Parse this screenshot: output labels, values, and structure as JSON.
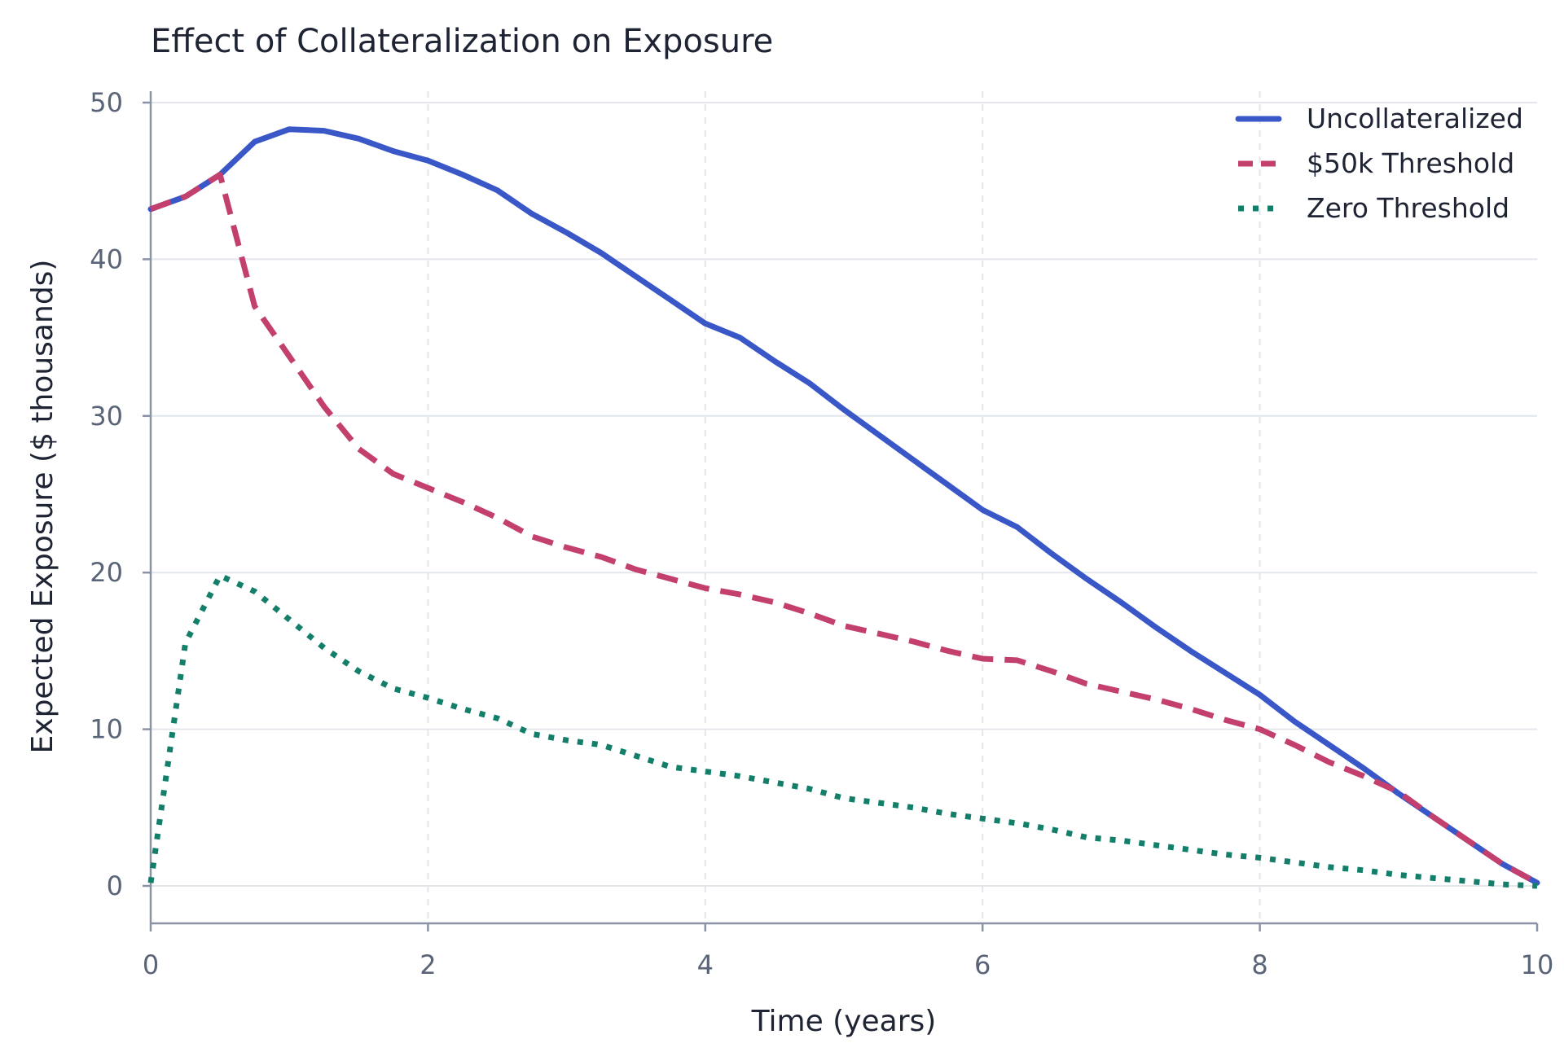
{
  "chart_data": {
    "type": "line",
    "title": "Effect of Collateralization on Exposure",
    "xlabel": "Time (years)",
    "ylabel": "Expected Exposure ($ thousands)",
    "xlim": [
      0,
      10
    ],
    "ylim": [
      0,
      50
    ],
    "xticks": [
      "0",
      "2",
      "4",
      "6",
      "8",
      "10"
    ],
    "yticks": [
      "0",
      "10",
      "20",
      "30",
      "40",
      "50"
    ],
    "grid": true,
    "legend_position": "top-right",
    "x": [
      0,
      0.25,
      0.5,
      0.75,
      1,
      1.25,
      1.5,
      1.75,
      2,
      2.25,
      2.5,
      2.75,
      3,
      3.25,
      3.5,
      3.75,
      4,
      4.25,
      4.5,
      4.75,
      5,
      5.25,
      5.5,
      5.75,
      6,
      6.25,
      6.5,
      6.75,
      7,
      7.25,
      7.5,
      7.75,
      8,
      8.25,
      8.5,
      8.75,
      9,
      9.25,
      9.5,
      9.75,
      10
    ],
    "series": [
      {
        "name": "Uncollateralized",
        "color": "#3a57c8",
        "style": "solid",
        "values": [
          43.2,
          44.0,
          45.4,
          47.5,
          48.3,
          48.2,
          47.7,
          46.9,
          46.3,
          45.4,
          44.4,
          42.9,
          41.7,
          40.4,
          38.9,
          37.4,
          35.9,
          35.0,
          33.5,
          32.1,
          30.4,
          28.8,
          27.2,
          25.6,
          24.0,
          22.9,
          21.2,
          19.6,
          18.1,
          16.5,
          15.0,
          13.6,
          12.2,
          10.5,
          9.0,
          7.5,
          5.9,
          4.4,
          2.9,
          1.4,
          0.2
        ]
      },
      {
        "name": "$50k Threshold",
        "color": "#c33f6e",
        "style": "dashed",
        "values": [
          43.2,
          44.0,
          45.4,
          37.0,
          33.8,
          30.6,
          27.9,
          26.3,
          25.4,
          24.5,
          23.5,
          22.3,
          21.6,
          21.0,
          20.2,
          19.6,
          19.0,
          18.6,
          18.1,
          17.4,
          16.6,
          16.1,
          15.6,
          15.0,
          14.5,
          14.4,
          13.7,
          12.9,
          12.4,
          11.9,
          11.3,
          10.6,
          10.0,
          9.0,
          7.9,
          7.0,
          6.0,
          4.4,
          2.9,
          1.4,
          0.2
        ]
      },
      {
        "name": "Zero Threshold",
        "color": "#137f6a",
        "style": "dotted",
        "values": [
          0.2,
          15.5,
          19.8,
          18.8,
          17.0,
          15.2,
          13.7,
          12.6,
          12.0,
          11.3,
          10.7,
          9.7,
          9.3,
          9.0,
          8.3,
          7.6,
          7.3,
          7.0,
          6.6,
          6.2,
          5.6,
          5.3,
          5.0,
          4.6,
          4.3,
          4.0,
          3.6,
          3.1,
          2.9,
          2.6,
          2.3,
          2.0,
          1.8,
          1.5,
          1.2,
          1.0,
          0.7,
          0.5,
          0.3,
          0.1,
          0.0
        ]
      }
    ]
  }
}
